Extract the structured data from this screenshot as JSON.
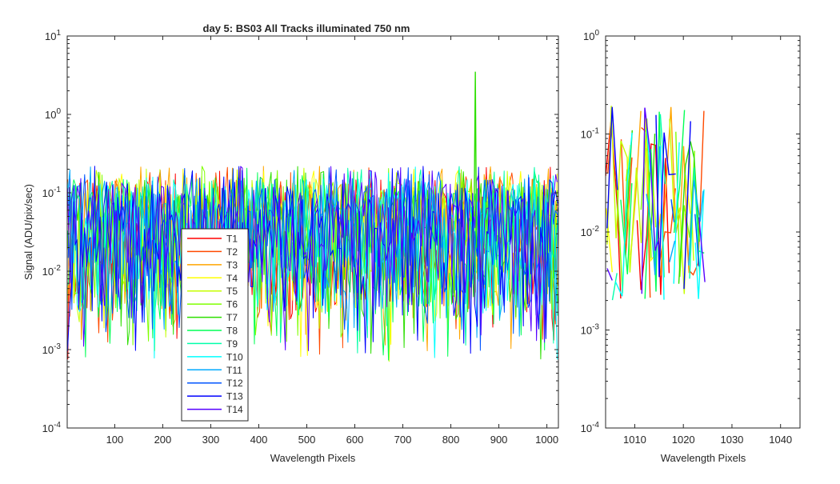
{
  "figure": {
    "title": "day 5: BS03   All Tracks illuminated   750 nm"
  },
  "chart_data": [
    {
      "type": "line",
      "title": "day 5: BS03   All Tracks illuminated   750 nm",
      "xlabel": "Wavelength Pixels",
      "ylabel": "Signal (ADU/pix/sec)",
      "xlim": [
        1,
        1024
      ],
      "ylim": [
        0.0001,
        10
      ],
      "yscale": "log",
      "grid": false,
      "x_ticks": [
        "100",
        "200",
        "300",
        "400",
        "500",
        "600",
        "700",
        "800",
        "900",
        "1000"
      ],
      "y_ticks": [
        {
          "base": "10",
          "exp": "-4"
        },
        {
          "base": "10",
          "exp": "-3"
        },
        {
          "base": "10",
          "exp": "-2"
        },
        {
          "base": "10",
          "exp": "-1"
        },
        {
          "base": "10",
          "exp": "0"
        },
        {
          "base": "10",
          "exp": "1"
        }
      ],
      "legend_position": "bottom-left inside",
      "series": [
        {
          "name": "T1",
          "color": "#ff0000"
        },
        {
          "name": "T2",
          "color": "#ff4a00"
        },
        {
          "name": "T3",
          "color": "#ffa500"
        },
        {
          "name": "T4",
          "color": "#ffff00"
        },
        {
          "name": "T5",
          "color": "#c6ff00"
        },
        {
          "name": "T6",
          "color": "#7fff00"
        },
        {
          "name": "T7",
          "color": "#2ddf00"
        },
        {
          "name": "T8",
          "color": "#00ff55"
        },
        {
          "name": "T9",
          "color": "#00ffaa"
        },
        {
          "name": "T10",
          "color": "#00ffff"
        },
        {
          "name": "T11",
          "color": "#00aaff"
        },
        {
          "name": "T12",
          "color": "#0055ff"
        },
        {
          "name": "T13",
          "color": "#0000ff"
        },
        {
          "name": "T14",
          "color": "#5500ff"
        }
      ],
      "noise": {
        "typical_low": 0.003,
        "typical_high": 0.15,
        "min": 0.0007,
        "max": 0.22
      },
      "annotations": [
        {
          "series": "T7",
          "x": 851,
          "y": 3.5
        }
      ]
    },
    {
      "type": "line",
      "xlabel": "Wavelength Pixels",
      "xlim": [
        1004,
        1044
      ],
      "ylim": [
        0.0001,
        1
      ],
      "yscale": "log",
      "x_ticks": [
        "1010",
        "1020",
        "1030",
        "1040"
      ],
      "y_ticks": [
        {
          "base": "10",
          "exp": "-4"
        },
        {
          "base": "10",
          "exp": "-3"
        },
        {
          "base": "10",
          "exp": "-2"
        },
        {
          "base": "10",
          "exp": "-1"
        },
        {
          "base": "10",
          "exp": "0"
        }
      ],
      "data_x_range": [
        1004,
        1024
      ]
    }
  ]
}
